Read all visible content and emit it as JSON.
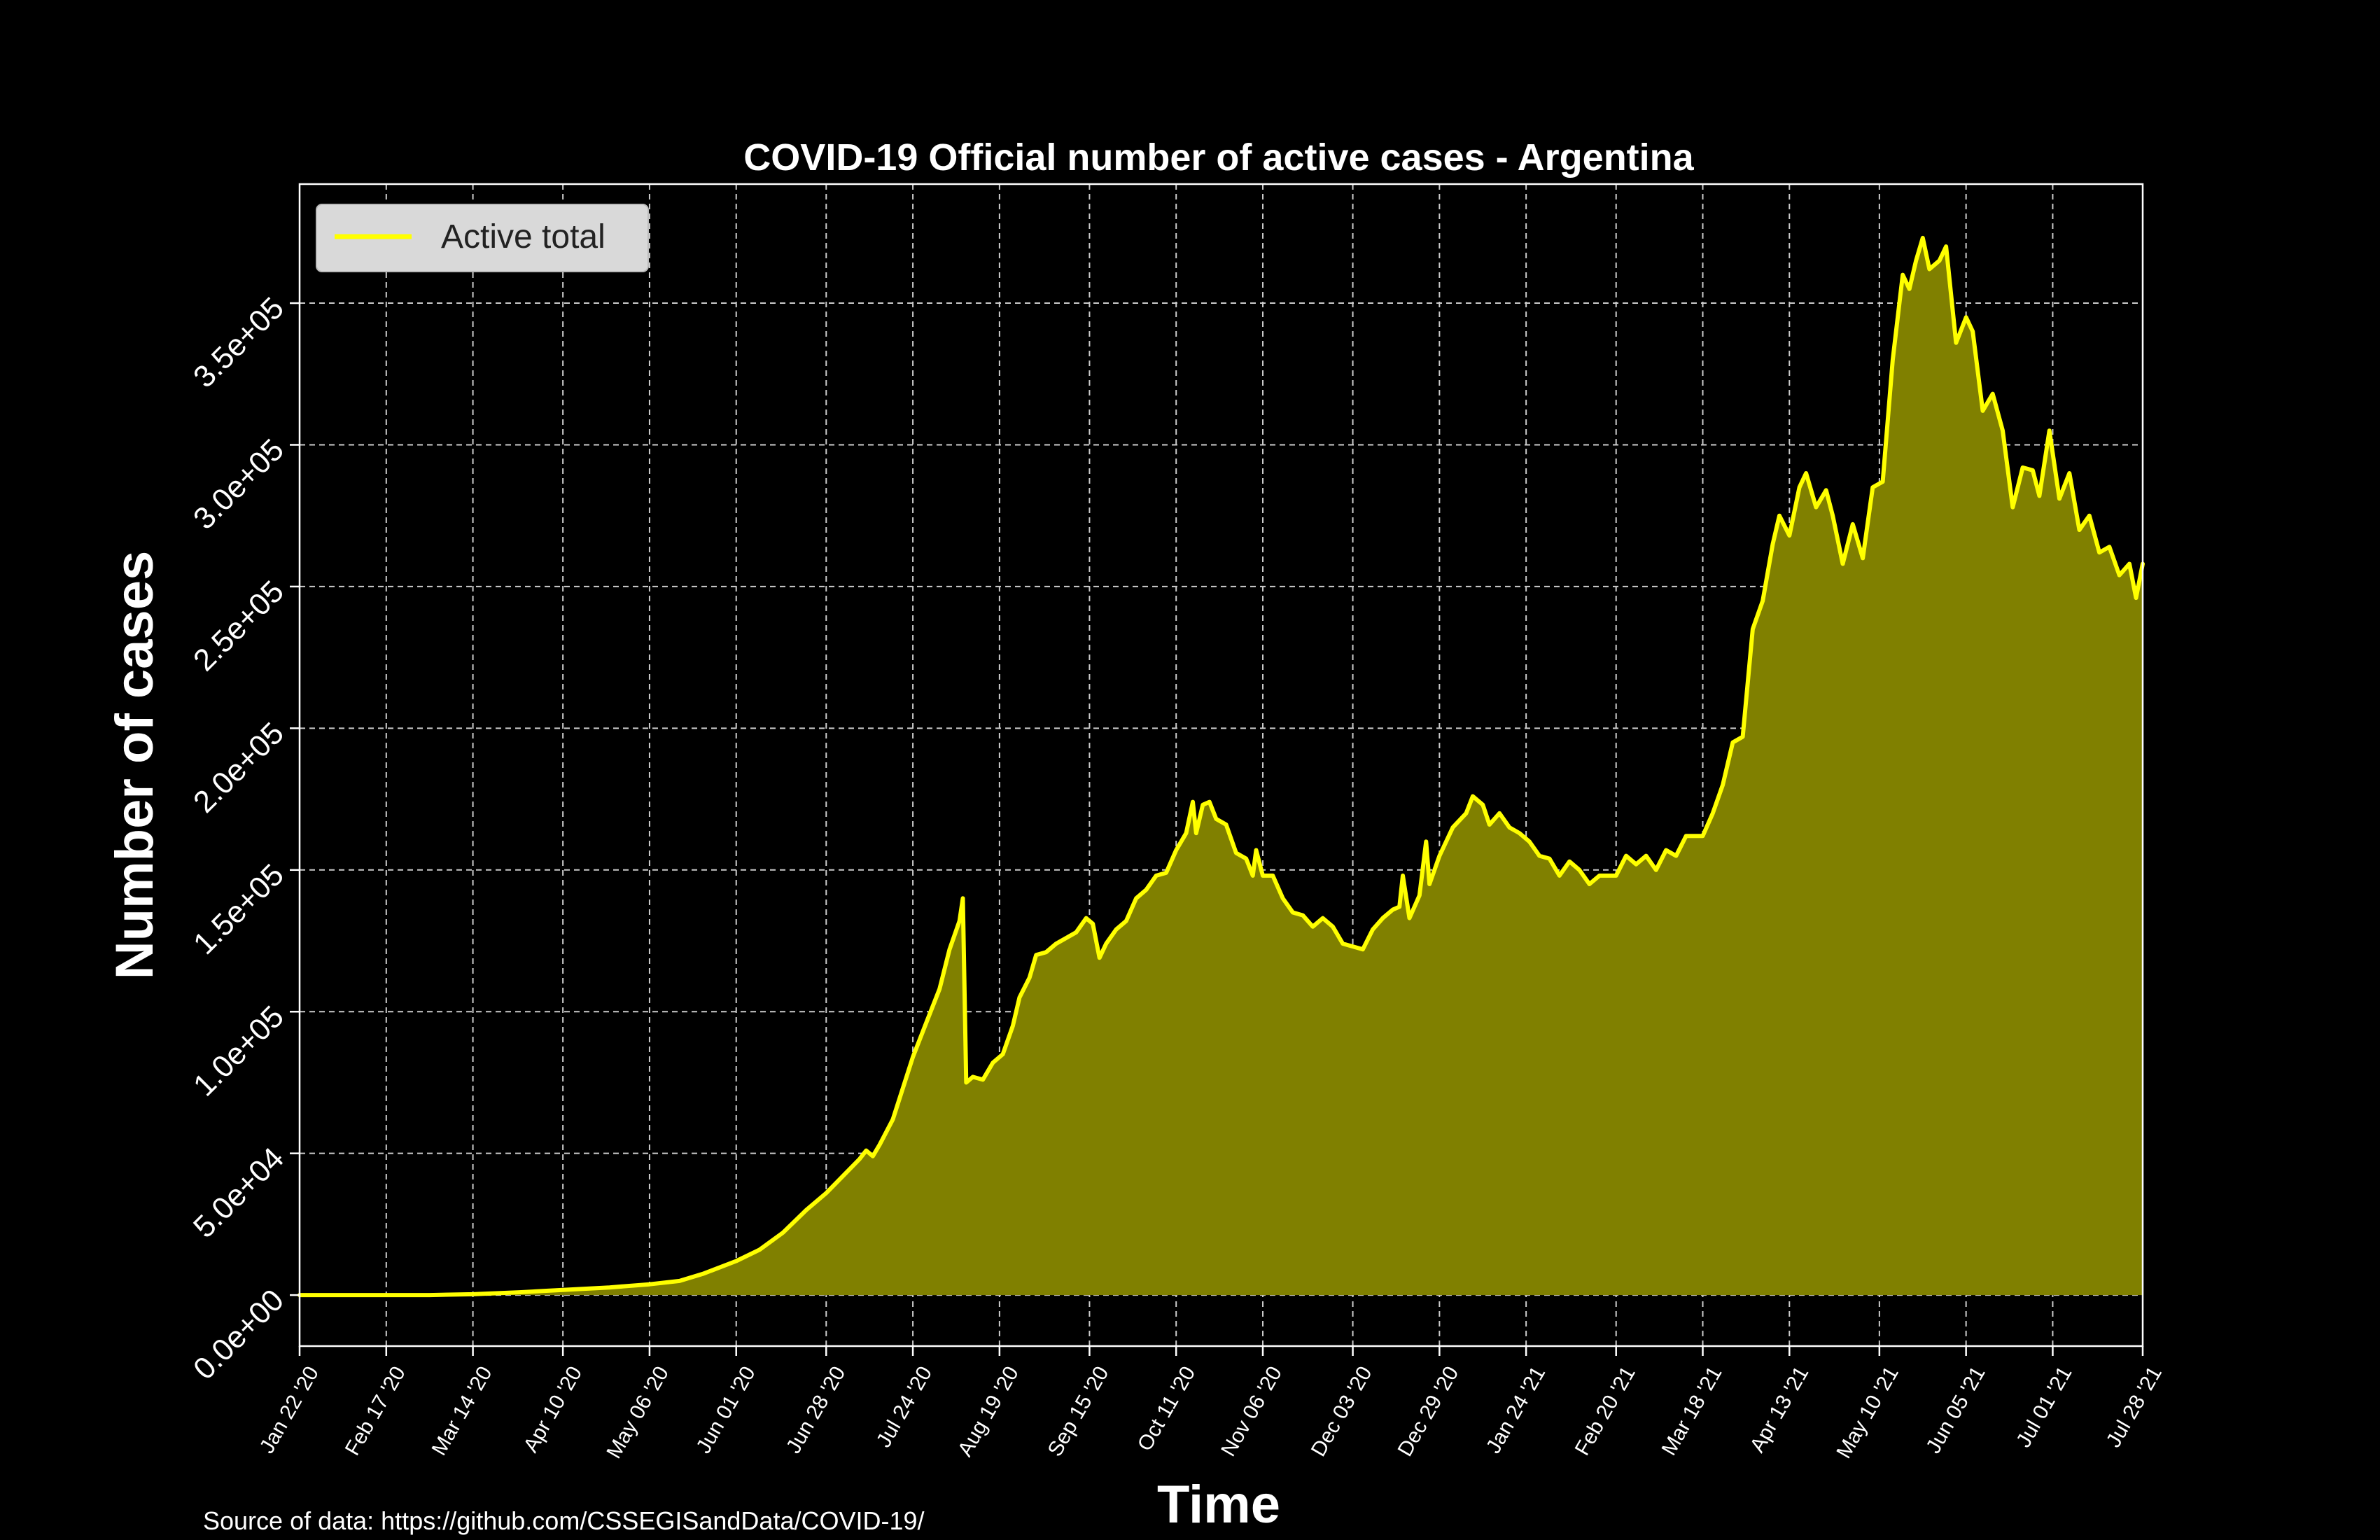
{
  "chart_data": {
    "type": "area",
    "title": "COVID-19 Official number of active cases - Argentina",
    "xlabel": "Time",
    "ylabel": "Number of cases",
    "source": "Source of data: https://github.com/CSSEGISandData/COVID-19/",
    "legend": {
      "position": "top-left",
      "entries": [
        "Active total"
      ]
    },
    "grid": true,
    "ylim": [
      -18000,
      392000
    ],
    "xlim": [
      "2020-01-22",
      "2021-07-28"
    ],
    "yticks": [
      {
        "value": 0,
        "label": "0.0e+00"
      },
      {
        "value": 50000,
        "label": "5.0e+04"
      },
      {
        "value": 100000,
        "label": "1.0e+05"
      },
      {
        "value": 150000,
        "label": "1.5e+05"
      },
      {
        "value": 200000,
        "label": "2.0e+05"
      },
      {
        "value": 250000,
        "label": "2.5e+05"
      },
      {
        "value": 300000,
        "label": "3.0e+05"
      },
      {
        "value": 350000,
        "label": "3.5e+05"
      }
    ],
    "xticks": [
      {
        "date": "2020-01-22",
        "label": "Jan 22 '20"
      },
      {
        "date": "2020-02-17",
        "label": "Feb 17 '20"
      },
      {
        "date": "2020-03-14",
        "label": "Mar 14 '20"
      },
      {
        "date": "2020-04-10",
        "label": "Apr 10 '20"
      },
      {
        "date": "2020-05-06",
        "label": "May 06 '20"
      },
      {
        "date": "2020-06-01",
        "label": "Jun 01 '20"
      },
      {
        "date": "2020-06-28",
        "label": "Jun 28 '20"
      },
      {
        "date": "2020-07-24",
        "label": "Jul 24 '20"
      },
      {
        "date": "2020-08-19",
        "label": "Aug 19 '20"
      },
      {
        "date": "2020-09-15",
        "label": "Sep 15 '20"
      },
      {
        "date": "2020-10-11",
        "label": "Oct 11 '20"
      },
      {
        "date": "2020-11-06",
        "label": "Nov 06 '20"
      },
      {
        "date": "2020-12-03",
        "label": "Dec 03 '20"
      },
      {
        "date": "2020-12-29",
        "label": "Dec 29 '20"
      },
      {
        "date": "2021-01-24",
        "label": "Jan 24 '21"
      },
      {
        "date": "2021-02-20",
        "label": "Feb 20 '21"
      },
      {
        "date": "2021-03-18",
        "label": "Mar 18 '21"
      },
      {
        "date": "2021-04-13",
        "label": "Apr 13 '21"
      },
      {
        "date": "2021-05-10",
        "label": "May 10 '21"
      },
      {
        "date": "2021-06-05",
        "label": "Jun 05 '21"
      },
      {
        "date": "2021-07-01",
        "label": "Jul 01 '21"
      },
      {
        "date": "2021-07-28",
        "label": "Jul 28 '21"
      }
    ],
    "series": [
      {
        "name": "Active total",
        "color": "#ffff00",
        "fill": "#808000",
        "points": [
          [
            "2020-01-22",
            0
          ],
          [
            "2020-03-01",
            0
          ],
          [
            "2020-03-14",
            300
          ],
          [
            "2020-03-28",
            1000
          ],
          [
            "2020-04-10",
            1800
          ],
          [
            "2020-04-24",
            2700
          ],
          [
            "2020-05-06",
            3800
          ],
          [
            "2020-05-15",
            5000
          ],
          [
            "2020-05-22",
            7500
          ],
          [
            "2020-06-01",
            12000
          ],
          [
            "2020-06-08",
            16000
          ],
          [
            "2020-06-15",
            22000
          ],
          [
            "2020-06-22",
            30000
          ],
          [
            "2020-06-28",
            36000
          ],
          [
            "2020-07-03",
            42000
          ],
          [
            "2020-07-08",
            48000
          ],
          [
            "2020-07-10",
            51000
          ],
          [
            "2020-07-12",
            49000
          ],
          [
            "2020-07-14",
            53000
          ],
          [
            "2020-07-18",
            62000
          ],
          [
            "2020-07-24",
            84000
          ],
          [
            "2020-07-28",
            96000
          ],
          [
            "2020-08-01",
            108000
          ],
          [
            "2020-08-04",
            122000
          ],
          [
            "2020-08-07",
            132000
          ],
          [
            "2020-08-08",
            140000
          ],
          [
            "2020-08-09",
            75000
          ],
          [
            "2020-08-11",
            77000
          ],
          [
            "2020-08-14",
            76000
          ],
          [
            "2020-08-17",
            82000
          ],
          [
            "2020-08-20",
            85000
          ],
          [
            "2020-08-23",
            95000
          ],
          [
            "2020-08-25",
            105000
          ],
          [
            "2020-08-28",
            112000
          ],
          [
            "2020-08-30",
            120000
          ],
          [
            "2020-09-02",
            121000
          ],
          [
            "2020-09-05",
            124000
          ],
          [
            "2020-09-08",
            126000
          ],
          [
            "2020-09-11",
            128000
          ],
          [
            "2020-09-14",
            133000
          ],
          [
            "2020-09-16",
            131000
          ],
          [
            "2020-09-18",
            119000
          ],
          [
            "2020-09-20",
            124000
          ],
          [
            "2020-09-23",
            129000
          ],
          [
            "2020-09-26",
            132000
          ],
          [
            "2020-09-29",
            140000
          ],
          [
            "2020-10-02",
            143000
          ],
          [
            "2020-10-05",
            148000
          ],
          [
            "2020-10-08",
            149000
          ],
          [
            "2020-10-11",
            157000
          ],
          [
            "2020-10-14",
            163000
          ],
          [
            "2020-10-16",
            174000
          ],
          [
            "2020-10-17",
            163000
          ],
          [
            "2020-10-19",
            173000
          ],
          [
            "2020-10-21",
            174000
          ],
          [
            "2020-10-23",
            168000
          ],
          [
            "2020-10-26",
            166000
          ],
          [
            "2020-10-29",
            156000
          ],
          [
            "2020-11-01",
            154000
          ],
          [
            "2020-11-03",
            148000
          ],
          [
            "2020-11-04",
            157000
          ],
          [
            "2020-11-06",
            148000
          ],
          [
            "2020-11-09",
            148000
          ],
          [
            "2020-11-12",
            140000
          ],
          [
            "2020-11-15",
            135000
          ],
          [
            "2020-11-18",
            134000
          ],
          [
            "2020-11-21",
            130000
          ],
          [
            "2020-11-24",
            133000
          ],
          [
            "2020-11-27",
            130000
          ],
          [
            "2020-11-30",
            124000
          ],
          [
            "2020-12-03",
            123000
          ],
          [
            "2020-12-06",
            122000
          ],
          [
            "2020-12-09",
            129000
          ],
          [
            "2020-12-12",
            133000
          ],
          [
            "2020-12-15",
            136000
          ],
          [
            "2020-12-17",
            137000
          ],
          [
            "2020-12-18",
            148000
          ],
          [
            "2020-12-20",
            133000
          ],
          [
            "2020-12-23",
            141000
          ],
          [
            "2020-12-25",
            160000
          ],
          [
            "2020-12-26",
            145000
          ],
          [
            "2020-12-29",
            155000
          ],
          [
            "2021-01-02",
            165000
          ],
          [
            "2021-01-06",
            170000
          ],
          [
            "2021-01-08",
            176000
          ],
          [
            "2021-01-11",
            173000
          ],
          [
            "2021-01-13",
            166000
          ],
          [
            "2021-01-16",
            170000
          ],
          [
            "2021-01-19",
            165000
          ],
          [
            "2021-01-22",
            163000
          ],
          [
            "2021-01-25",
            160000
          ],
          [
            "2021-01-28",
            155000
          ],
          [
            "2021-01-31",
            154000
          ],
          [
            "2021-02-03",
            148000
          ],
          [
            "2021-02-06",
            153000
          ],
          [
            "2021-02-09",
            150000
          ],
          [
            "2021-02-12",
            145000
          ],
          [
            "2021-02-15",
            148000
          ],
          [
            "2021-02-20",
            148000
          ],
          [
            "2021-02-23",
            155000
          ],
          [
            "2021-02-26",
            152000
          ],
          [
            "2021-03-01",
            155000
          ],
          [
            "2021-03-04",
            150000
          ],
          [
            "2021-03-07",
            157000
          ],
          [
            "2021-03-10",
            155000
          ],
          [
            "2021-03-13",
            162000
          ],
          [
            "2021-03-18",
            162000
          ],
          [
            "2021-03-21",
            170000
          ],
          [
            "2021-03-24",
            180000
          ],
          [
            "2021-03-27",
            195000
          ],
          [
            "2021-03-30",
            197000
          ],
          [
            "2021-04-02",
            235000
          ],
          [
            "2021-04-05",
            245000
          ],
          [
            "2021-04-08",
            265000
          ],
          [
            "2021-04-10",
            275000
          ],
          [
            "2021-04-13",
            268000
          ],
          [
            "2021-04-16",
            285000
          ],
          [
            "2021-04-18",
            290000
          ],
          [
            "2021-04-21",
            278000
          ],
          [
            "2021-04-24",
            284000
          ],
          [
            "2021-04-26",
            275000
          ],
          [
            "2021-04-29",
            258000
          ],
          [
            "2021-05-02",
            272000
          ],
          [
            "2021-05-05",
            260000
          ],
          [
            "2021-05-08",
            285000
          ],
          [
            "2021-05-11",
            287000
          ],
          [
            "2021-05-14",
            330000
          ],
          [
            "2021-05-17",
            360000
          ],
          [
            "2021-05-19",
            355000
          ],
          [
            "2021-05-21",
            365000
          ],
          [
            "2021-05-23",
            373000
          ],
          [
            "2021-05-25",
            362000
          ],
          [
            "2021-05-28",
            365000
          ],
          [
            "2021-05-30",
            370000
          ],
          [
            "2021-06-02",
            336000
          ],
          [
            "2021-06-05",
            345000
          ],
          [
            "2021-06-07",
            340000
          ],
          [
            "2021-06-10",
            312000
          ],
          [
            "2021-06-13",
            318000
          ],
          [
            "2021-06-16",
            305000
          ],
          [
            "2021-06-19",
            278000
          ],
          [
            "2021-06-22",
            292000
          ],
          [
            "2021-06-25",
            291000
          ],
          [
            "2021-06-27",
            282000
          ],
          [
            "2021-06-30",
            305000
          ],
          [
            "2021-07-03",
            281000
          ],
          [
            "2021-07-06",
            290000
          ],
          [
            "2021-07-09",
            270000
          ],
          [
            "2021-07-12",
            275000
          ],
          [
            "2021-07-15",
            262000
          ],
          [
            "2021-07-18",
            264000
          ],
          [
            "2021-07-21",
            254000
          ],
          [
            "2021-07-24",
            258000
          ],
          [
            "2021-07-26",
            246000
          ],
          [
            "2021-07-28",
            258000
          ]
        ]
      }
    ]
  }
}
